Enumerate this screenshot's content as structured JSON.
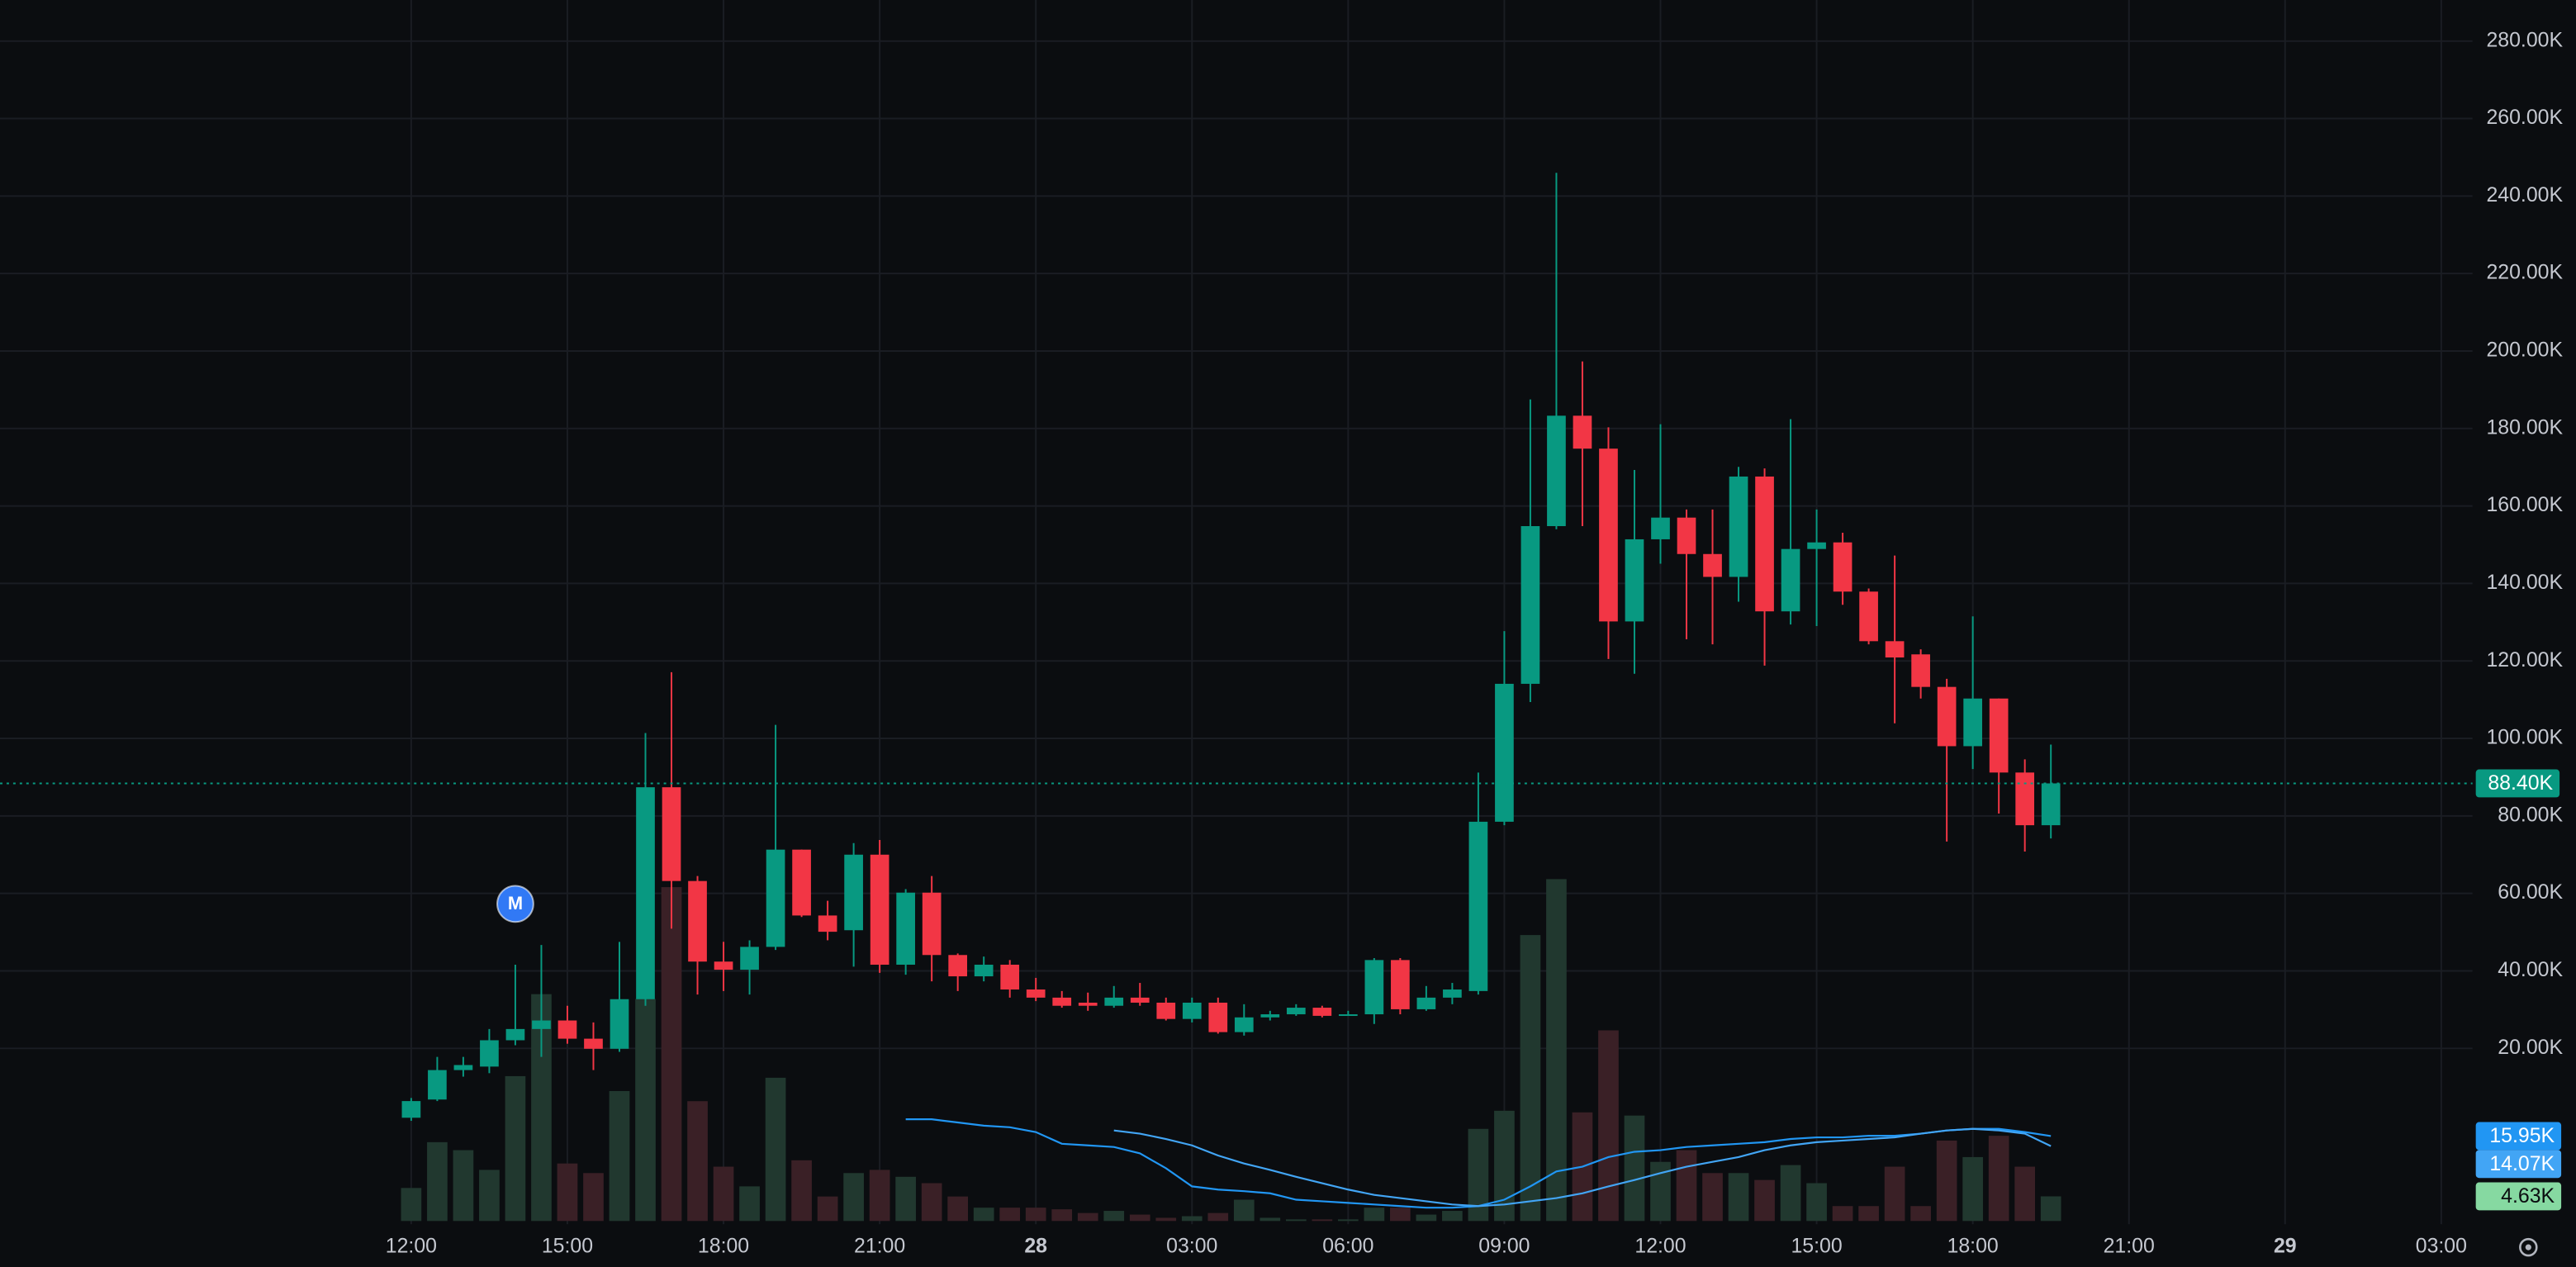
{
  "chart_data": {
    "type": "candlestick",
    "x": [
      -12,
      -11.5,
      -11,
      -10.5,
      -10,
      -9.5,
      -9,
      -8.5,
      -8,
      -7.5,
      -7,
      -6.5,
      -6,
      -5.5,
      -5,
      -4.5,
      -4,
      -3.5,
      -3,
      -2.5,
      -2,
      -1.5,
      -1,
      -0.5,
      0,
      0.5,
      1,
      1.5,
      2,
      2.5,
      3,
      3.5,
      4,
      4.5,
      5,
      5.5,
      6,
      6.5,
      7,
      7.5,
      8,
      8.5,
      9,
      9.5,
      10,
      10.5,
      11,
      11.5,
      12,
      12.5,
      13,
      13.5,
      14,
      14.5,
      15,
      15.5,
      16,
      16.5,
      17,
      17.5,
      18,
      18.5,
      19,
      19.5
    ],
    "open": [
      2.1,
      6.8,
      14.4,
      15.3,
      22.1,
      25.0,
      27.2,
      22.5,
      19.9,
      32.7,
      87.4,
      63.2,
      42.4,
      40.3,
      46.2,
      71.3,
      54.3,
      50.5,
      70.0,
      41.6,
      60.2,
      44.1,
      38.6,
      41.6,
      35.2,
      33.1,
      31.8,
      31.0,
      33.1,
      31.8,
      27.6,
      31.8,
      24.2,
      28.0,
      28.8,
      30.5,
      28.4,
      28.8,
      42.8,
      30.1,
      33.1,
      34.8,
      78.5,
      114.1,
      154.8,
      183.3,
      174.8,
      130.2,
      151.4,
      157.0,
      147.6,
      141.7,
      167.6,
      132.8,
      148.9,
      150.6,
      137.9,
      125.1,
      121.7,
      113.3,
      98.0,
      110.3,
      91.2,
      77.6
    ],
    "high": [
      7.2,
      17.8,
      17.8,
      25.0,
      41.6,
      46.7,
      31.0,
      26.7,
      47.5,
      101.4,
      117.1,
      64.5,
      47.5,
      47.9,
      103.5,
      71.3,
      58.1,
      73.0,
      73.8,
      61.1,
      64.5,
      44.5,
      43.7,
      42.8,
      38.2,
      34.8,
      34.4,
      36.1,
      36.9,
      33.1,
      33.1,
      33.1,
      31.4,
      29.7,
      31.4,
      31.0,
      29.7,
      43.3,
      43.3,
      36.1,
      36.9,
      91.2,
      127.7,
      187.5,
      246.0,
      197.3,
      180.3,
      169.3,
      181.1,
      159.1,
      159.1,
      170.1,
      169.7,
      182.4,
      159.1,
      153.1,
      138.7,
      147.2,
      123.0,
      115.4,
      131.5,
      110.3,
      94.6,
      98.4
    ],
    "low": [
      1.3,
      6.4,
      12.7,
      13.6,
      20.8,
      17.8,
      21.2,
      14.4,
      19.1,
      31.0,
      50.9,
      33.9,
      34.8,
      33.9,
      45.4,
      53.9,
      47.9,
      41.1,
      39.5,
      39.0,
      37.3,
      34.8,
      37.3,
      33.1,
      32.2,
      30.5,
      29.7,
      30.5,
      31.0,
      27.2,
      26.7,
      23.8,
      23.3,
      27.2,
      28.4,
      28.0,
      28.4,
      26.3,
      28.8,
      29.7,
      31.4,
      33.9,
      77.6,
      109.4,
      154.0,
      154.8,
      120.5,
      116.7,
      145.1,
      125.6,
      124.3,
      135.3,
      118.8,
      129.4,
      129.0,
      134.5,
      124.3,
      103.9,
      110.3,
      73.4,
      92.1,
      80.6,
      70.8,
      74.2
    ],
    "close": [
      6.4,
      14.4,
      15.7,
      22.1,
      25.0,
      27.2,
      22.5,
      19.9,
      32.7,
      87.4,
      63.2,
      42.4,
      40.3,
      46.2,
      71.3,
      54.3,
      50.1,
      70.0,
      41.6,
      60.2,
      44.1,
      38.6,
      41.6,
      35.2,
      33.1,
      31.0,
      31.0,
      33.1,
      31.8,
      27.6,
      31.8,
      24.2,
      28.0,
      28.8,
      30.5,
      28.4,
      28.8,
      42.8,
      30.1,
      33.1,
      35.2,
      78.5,
      114.1,
      154.8,
      183.3,
      174.8,
      130.2,
      151.4,
      157.0,
      147.6,
      141.7,
      167.6,
      132.8,
      148.9,
      150.6,
      137.9,
      125.1,
      120.9,
      113.3,
      98.0,
      110.3,
      91.2,
      77.6,
      88.4
    ],
    "up_color": "#089981",
    "down_color": "#f23645",
    "volume": {
      "values": [
        6.2,
        14.8,
        13.3,
        9.6,
        27.2,
        42.6,
        10.8,
        9.0,
        24.4,
        41.7,
        62.7,
        22.5,
        10.2,
        6.5,
        26.9,
        11.4,
        4.6,
        9.0,
        9.6,
        8.3,
        7.1,
        4.6,
        2.5,
        2.5,
        2.5,
        2.2,
        1.5,
        1.9,
        1.2,
        0.6,
        0.9,
        1.5,
        4.0,
        0.6,
        0.3,
        0.3,
        0.3,
        2.5,
        2.5,
        1.2,
        1.9,
        17.3,
        20.7,
        53.7,
        64.2,
        20.4,
        35.8,
        19.8,
        11.1,
        13.3,
        9.0,
        9.0,
        7.7,
        10.5,
        7.1,
        2.8,
        2.8,
        10.2,
        2.8,
        15.1,
        12.0,
        16.0,
        10.2,
        4.63
      ],
      "up_color": "#21382f",
      "down_color": "#3a2026",
      "axis": "y2",
      "last_label": "4.63K",
      "label_color": "#86d9a1"
    },
    "moving_averages": [
      {
        "color": "#2196f3",
        "axis": "y2",
        "last_label": "15.95K",
        "values": [
          null,
          null,
          null,
          null,
          null,
          null,
          null,
          null,
          null,
          null,
          null,
          null,
          null,
          null,
          null,
          null,
          null,
          null,
          null,
          19.1,
          19.1,
          18.5,
          17.9,
          17.6,
          16.7,
          14.5,
          14.2,
          13.9,
          12.7,
          9.9,
          6.5,
          5.9,
          5.6,
          5.2,
          4.0,
          3.7,
          3.4,
          3.1,
          2.8,
          2.5,
          2.5,
          2.8,
          4.0,
          6.5,
          9.3,
          10.2,
          12.0,
          13.0,
          13.3,
          13.9,
          14.2,
          14.5,
          14.8,
          15.4,
          15.7,
          15.7,
          16.0,
          16.0,
          16.4,
          17.0,
          17.3,
          17.3,
          16.7,
          15.95
        ]
      },
      {
        "color": "#42a5f5",
        "axis": "y2",
        "last_label": "14.07K",
        "values": [
          null,
          null,
          null,
          null,
          null,
          null,
          null,
          null,
          null,
          null,
          null,
          null,
          null,
          null,
          null,
          null,
          null,
          null,
          null,
          null,
          null,
          null,
          null,
          null,
          null,
          null,
          null,
          17.0,
          16.4,
          15.4,
          14.2,
          12.3,
          10.8,
          9.6,
          8.3,
          7.1,
          5.9,
          4.9,
          4.3,
          3.7,
          3.1,
          2.8,
          3.1,
          3.7,
          4.3,
          5.2,
          6.5,
          7.7,
          9.0,
          10.2,
          11.1,
          12.0,
          13.3,
          14.2,
          14.8,
          15.1,
          15.4,
          15.7,
          16.4,
          17.0,
          17.3,
          17.0,
          16.4,
          14.07
        ]
      }
    ],
    "price_line": {
      "value": 88.4,
      "label": "88.40K",
      "color": "#089981"
    },
    "annotations": [
      {
        "x": -10,
        "y": 57.3,
        "label": "M",
        "color": "#3179f5"
      }
    ],
    "xlim": [
      -19.9,
      27.6
    ],
    "ylim": [
      -25.4,
      290.6
    ],
    "y2lim": [
      0,
      229.3
    ],
    "xticks": [
      {
        "value": -12,
        "label": "12:00"
      },
      {
        "value": -9,
        "label": "15:00"
      },
      {
        "value": -6,
        "label": "18:00"
      },
      {
        "value": -3,
        "label": "21:00"
      },
      {
        "value": 0,
        "label": "28",
        "bold": true
      },
      {
        "value": 3,
        "label": "03:00"
      },
      {
        "value": 6,
        "label": "06:00"
      },
      {
        "value": 9,
        "label": "09:00"
      },
      {
        "value": 12,
        "label": "12:00"
      },
      {
        "value": 15,
        "label": "15:00"
      },
      {
        "value": 18,
        "label": "18:00"
      },
      {
        "value": 21,
        "label": "21:00"
      },
      {
        "value": 24,
        "label": "29",
        "bold": true
      },
      {
        "value": 27,
        "label": "03:00"
      }
    ],
    "yticks": [
      {
        "value": 20,
        "label": "20.00K"
      },
      {
        "value": 40,
        "label": "40.00K"
      },
      {
        "value": 60,
        "label": "60.00K"
      },
      {
        "value": 80,
        "label": "80.00K"
      },
      {
        "value": 100,
        "label": "100.00K"
      },
      {
        "value": 120,
        "label": "120.00K"
      },
      {
        "value": 140,
        "label": "140.00K"
      },
      {
        "value": 160,
        "label": "160.00K"
      },
      {
        "value": 180,
        "label": "180.00K"
      },
      {
        "value": 200,
        "label": "200.00K"
      },
      {
        "value": 220,
        "label": "220.00K"
      },
      {
        "value": 240,
        "label": "240.00K"
      },
      {
        "value": 260,
        "label": "260.00K"
      },
      {
        "value": 280,
        "label": "280.00K"
      }
    ],
    "grid": true
  }
}
